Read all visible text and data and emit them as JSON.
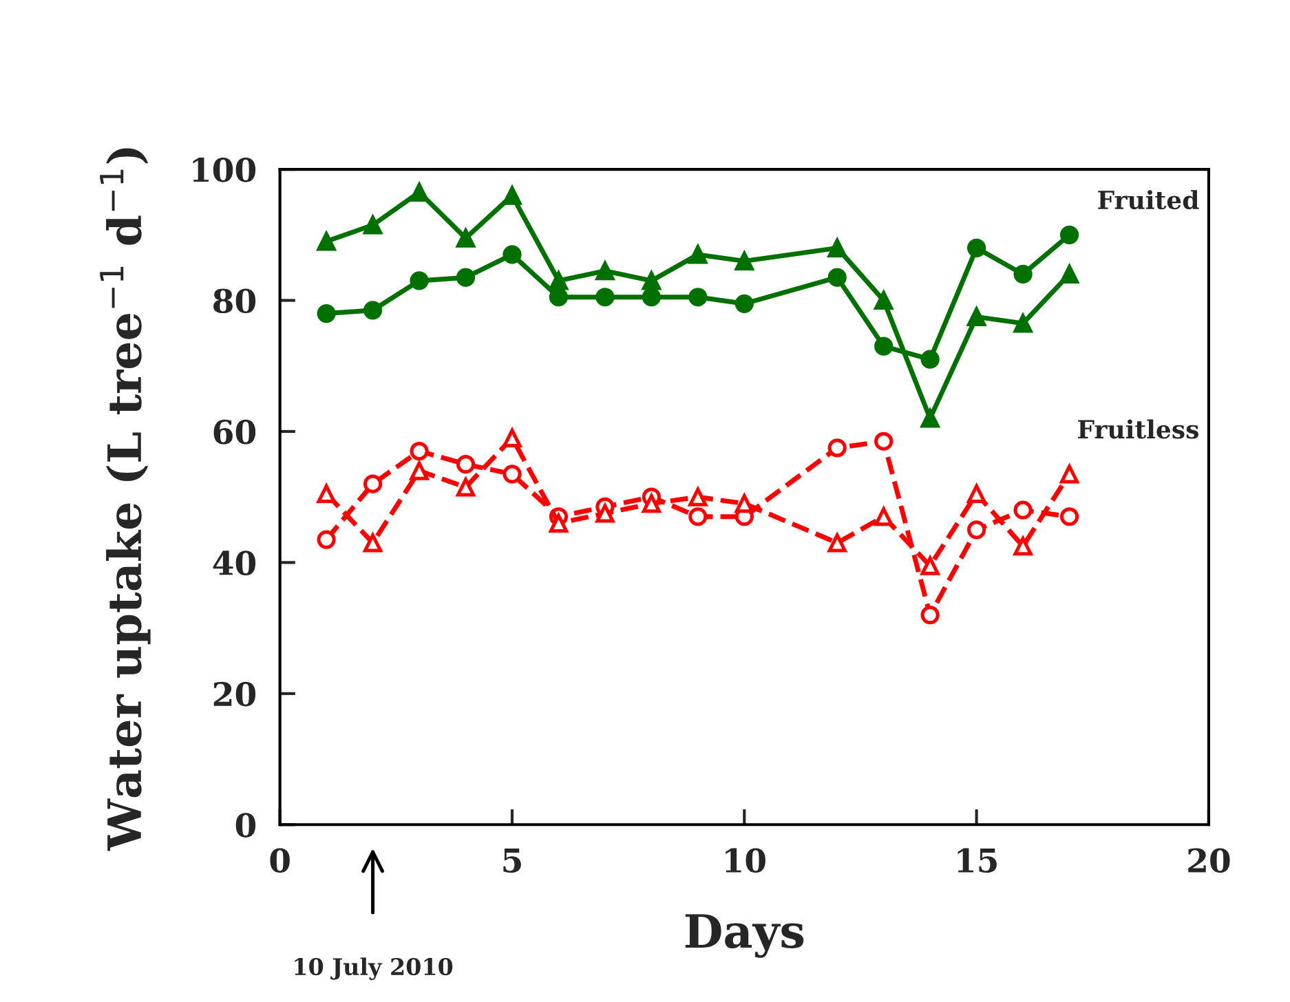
{
  "chart_data": {
    "type": "line",
    "xlabel": "Days",
    "ylabel": "Water uptake (L tree$^{−1}$ d$^{−1}$)",
    "x": [
      1,
      2,
      3,
      4,
      5,
      6,
      7,
      8,
      9,
      10,
      12,
      13,
      14,
      15,
      16,
      17
    ],
    "series": [
      {
        "color": "#007000",
        "marker": "triangle",
        "line_style": "solid",
        "values": [
          89,
          91.5,
          96.5,
          89.5,
          96,
          83,
          84.5,
          83,
          87,
          86,
          88,
          80,
          62,
          77.5,
          76.5,
          84
        ]
      },
      {
        "color": "#007000",
        "marker": "circle",
        "line_style": "solid",
        "values": [
          78,
          78.5,
          83,
          83.5,
          87,
          80.5,
          80.5,
          80.5,
          80.5,
          79.5,
          83.5,
          73,
          71,
          88,
          84,
          90
        ]
      },
      {
        "color": "#ff0000",
        "marker": "circle",
        "line_style": "dashed",
        "values": [
          43.5,
          52,
          57,
          55,
          53.5,
          47,
          48.5,
          50,
          47,
          47,
          57.5,
          58.5,
          32,
          45,
          48,
          47
        ]
      },
      {
        "color": "#ff0000",
        "marker": "triangle",
        "line_style": "dashed",
        "values": [
          50.5,
          43,
          54,
          51.5,
          59,
          46,
          47.5,
          49,
          50,
          49,
          43,
          47,
          39.5,
          50.5,
          42.5,
          53.5
        ]
      }
    ],
    "xlim": [
      0,
      20
    ],
    "xticks": [
      0,
      5,
      10,
      15,
      20
    ],
    "ylim": [
      0,
      100
    ],
    "yticks": [
      0,
      20,
      40,
      60,
      80,
      100
    ],
    "grid": false,
    "legend": false,
    "annotations": [
      "Fruited",
      "Fruitless",
      "10 July 2010"
    ]
  }
}
